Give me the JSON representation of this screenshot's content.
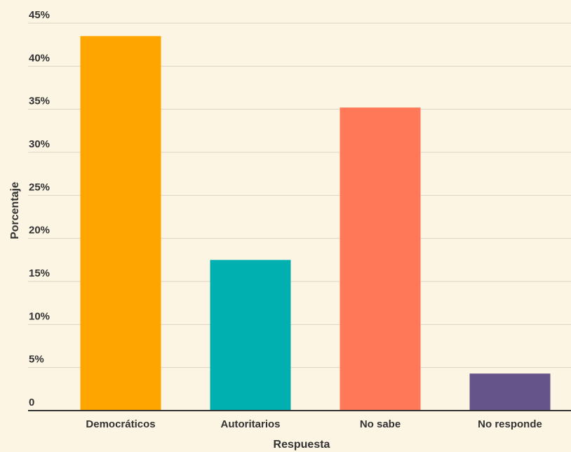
{
  "chart_data": {
    "type": "bar",
    "title": "",
    "xlabel": "Respuesta",
    "ylabel": "Porcentaje",
    "categories": [
      "Democráticos",
      "Autoritarios",
      "No sabe",
      "No responde"
    ],
    "values": [
      43.5,
      17.5,
      35.2,
      4.3
    ],
    "colors": [
      "#ffa500",
      "#00b0b0",
      "#ff7858",
      "#64548a"
    ],
    "ylim": [
      0,
      45
    ],
    "yticks": [
      0,
      5,
      10,
      15,
      20,
      25,
      30,
      35,
      40,
      45
    ],
    "ytick_labels": [
      "0",
      "5%",
      "10%",
      "15%",
      "20%",
      "25%",
      "30%",
      "35%",
      "40%",
      "45%"
    ],
    "grid": true,
    "legend": "none"
  },
  "style": {
    "background": "#fdf5e4",
    "gridline_color": "#dcd4c3",
    "axis_color": "#333333"
  }
}
